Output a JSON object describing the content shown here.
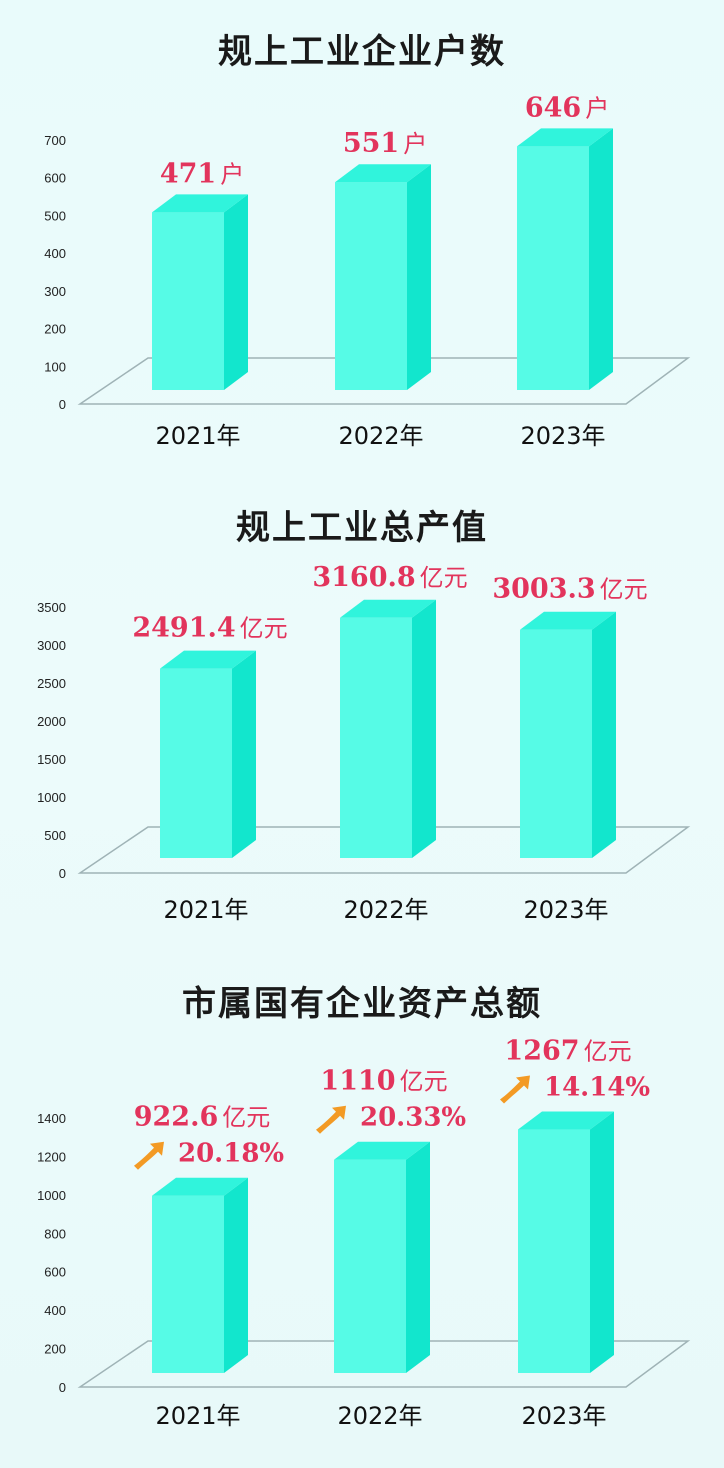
{
  "colors": {
    "bar_front": "#56fbe6",
    "bar_side": "#12e6cd",
    "bar_top": "#30f4dc",
    "label": "#e2345c",
    "arrow": "#f39a24"
  },
  "chart_data": [
    {
      "type": "bar",
      "title": "规上工业企业户数",
      "categories": [
        "2021年",
        "2022年",
        "2023年"
      ],
      "values": [
        471,
        551,
        646
      ],
      "value_labels": [
        "471",
        "551",
        "646"
      ],
      "unit": "户",
      "ylim": [
        0,
        700
      ],
      "yticks": [
        "0",
        "100",
        "200",
        "300",
        "400",
        "500",
        "600",
        "700"
      ],
      "grid": false,
      "style": "3d-bar"
    },
    {
      "type": "bar",
      "title": "规上工业总产值",
      "categories": [
        "2021年",
        "2022年",
        "2023年"
      ],
      "values": [
        2491.4,
        3160.8,
        3003.3
      ],
      "value_labels": [
        "2491.4",
        "3160.8",
        "3003.3"
      ],
      "unit": "亿元",
      "ylim": [
        0,
        3500
      ],
      "yticks": [
        "0",
        "500",
        "1000",
        "1500",
        "2000",
        "2500",
        "3000",
        "3500"
      ],
      "grid": false,
      "style": "3d-bar"
    },
    {
      "type": "bar",
      "title": "市属国有企业资产总额",
      "categories": [
        "2021年",
        "2022年",
        "2023年"
      ],
      "values": [
        922.6,
        1110,
        1267
      ],
      "value_labels": [
        "922.6",
        "1110",
        "1267"
      ],
      "unit": "亿元",
      "growth": [
        "20.18%",
        "20.33%",
        "14.14%"
      ],
      "ylim": [
        0,
        1400
      ],
      "yticks": [
        "0",
        "200",
        "400",
        "600",
        "800",
        "1000",
        "1200",
        "1400"
      ],
      "grid": false,
      "style": "3d-bar"
    }
  ]
}
